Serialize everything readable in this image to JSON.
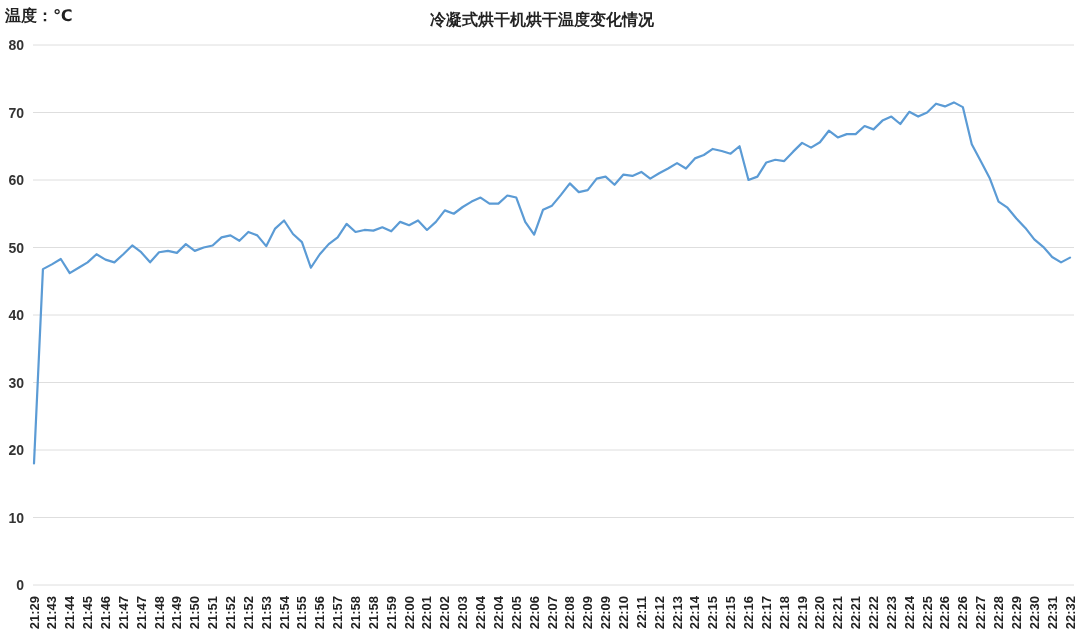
{
  "chart_data": {
    "type": "line",
    "title": "冷凝式烘干机烘干温度变化情况",
    "ylabel": "温度：℃",
    "categories": [
      "21:29",
      null,
      "21:43",
      null,
      "21:44",
      null,
      "21:45",
      null,
      "21:46",
      null,
      "21:47",
      null,
      "21:47",
      null,
      "21:48",
      null,
      "21:49",
      null,
      "21:50",
      null,
      "21:51",
      null,
      "21:52",
      null,
      "21:52",
      null,
      "21:53",
      null,
      "21:54",
      null,
      "21:55",
      null,
      "21:56",
      null,
      "21:57",
      null,
      "21:58",
      null,
      "21:58",
      null,
      "21:59",
      null,
      "22:00",
      null,
      "22:01",
      null,
      "22:02",
      null,
      "22:03",
      null,
      "22:04",
      null,
      "22:04",
      null,
      "22:05",
      null,
      "22:06",
      null,
      "22:07",
      null,
      "22:08",
      null,
      "22:09",
      null,
      "22:09",
      null,
      "22:10",
      null,
      "22:11",
      null,
      "22:12",
      null,
      "22:13",
      null,
      "22:14",
      null,
      "22:15",
      null,
      "22:15",
      null,
      "22:16",
      null,
      "22:17",
      null,
      "22:18",
      null,
      "22:19",
      null,
      "22:20",
      null,
      "22:21",
      null,
      "22:21",
      null,
      "22:22",
      null,
      "22:23",
      null,
      "22:24",
      null,
      "22:25",
      null,
      "22:26",
      null,
      "22:26",
      null,
      "22:27",
      null,
      "22:28",
      null,
      "22:29",
      null,
      "22:30",
      null,
      "22:31",
      null,
      "22:32"
    ],
    "values": [
      18,
      46.8,
      47.5,
      48.3,
      46.2,
      47,
      47.8,
      49,
      48.2,
      47.8,
      49,
      50.3,
      49.3,
      47.8,
      49.3,
      49.5,
      49.2,
      50.5,
      49.5,
      50,
      50.3,
      51.5,
      51.8,
      51,
      52.3,
      51.8,
      50.2,
      52.8,
      54,
      52,
      50.8,
      47,
      49,
      50.5,
      51.5,
      53.5,
      52.3,
      52.6,
      52.5,
      53,
      52.4,
      53.8,
      53.3,
      54,
      52.6,
      53.8,
      55.5,
      55,
      56,
      56.8,
      57.4,
      56.5,
      56.5,
      57.7,
      57.4,
      53.8,
      51.9,
      55.6,
      56.2,
      57.8,
      59.5,
      58.2,
      58.5,
      60.2,
      60.5,
      59.3,
      60.8,
      60.6,
      61.2,
      60.2,
      61,
      61.7,
      62.5,
      61.7,
      63.2,
      63.7,
      64.6,
      64.3,
      63.9,
      65,
      60,
      60.5,
      62.6,
      63,
      62.8,
      64.2,
      65.5,
      64.8,
      65.6,
      67.3,
      66.3,
      66.8,
      66.8,
      68,
      67.5,
      68.8,
      69.4,
      68.3,
      70.1,
      69.4,
      70,
      71.3,
      70.9,
      71.5,
      70.8,
      65.3,
      62.8,
      60.3,
      56.8,
      55.9,
      54.3,
      52.9,
      51.2,
      50.1,
      48.6,
      47.8,
      48.5
    ],
    "color": "#5b9bd5",
    "ylim": [
      0,
      80
    ],
    "yticks": [
      0,
      10,
      20,
      30,
      40,
      50,
      60,
      70,
      80
    ],
    "grid": "y"
  }
}
